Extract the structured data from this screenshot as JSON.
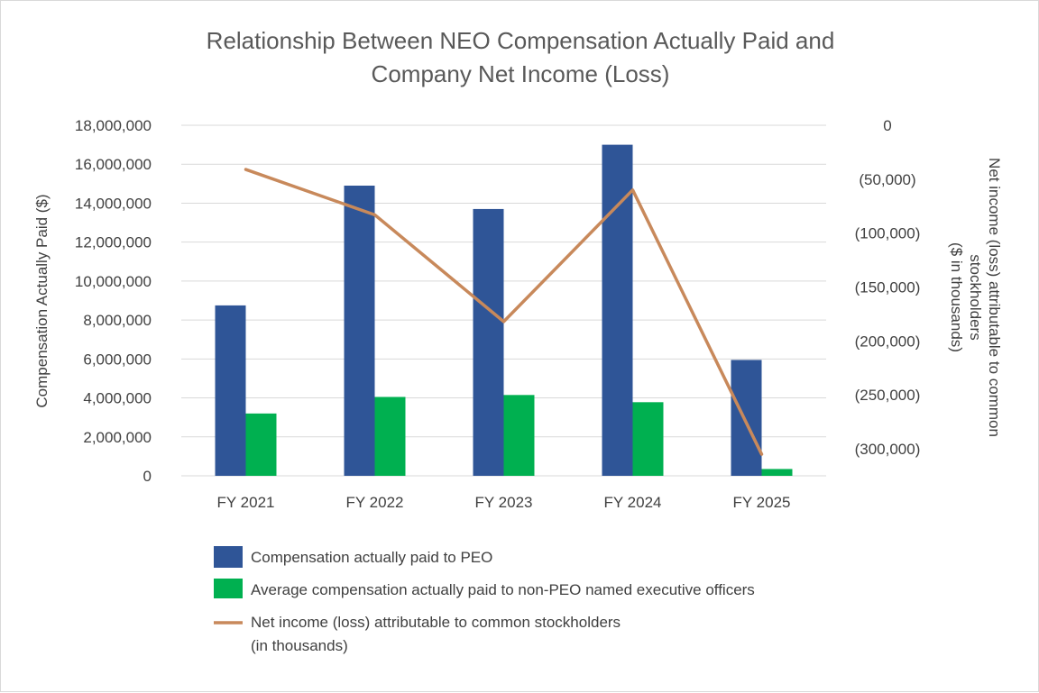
{
  "chart_data": {
    "type": "bar",
    "title": {
      "line1": "Relationship Between NEO Compensation Actually Paid and",
      "line2": "Company Net Income (Loss)"
    },
    "categories": [
      "FY 2021",
      "FY 2022",
      "FY 2023",
      "FY 2024",
      "FY 2025"
    ],
    "series": [
      {
        "name": "Compensation actually paid to PEO",
        "kind": "bar",
        "axis": "left",
        "color": "#2f5597",
        "values": [
          8750000,
          14900000,
          13700000,
          17000000,
          5950000
        ]
      },
      {
        "name": "Average compensation actually paid to non-PEO named executive officers",
        "kind": "bar",
        "axis": "left",
        "color": "#00b050",
        "values": [
          3200000,
          4050000,
          4150000,
          3780000,
          350000
        ]
      },
      {
        "name": "Net income (loss) attributable to common stockholders (in thousands)",
        "legend_lines": [
          "Net income (loss) attributable to common stockholders",
          "(in thousands)"
        ],
        "kind": "line",
        "axis": "right",
        "color": "#c8895b",
        "values": [
          -41000,
          -83000,
          -182000,
          -60000,
          -305000
        ]
      }
    ],
    "left_axis": {
      "label": "Compensation Actually Paid ($)",
      "ylim": [
        0,
        18000000
      ],
      "ticks": [
        "0",
        "2,000,000",
        "4,000,000",
        "6,000,000",
        "8,000,000",
        "10,000,000",
        "12,000,000",
        "14,000,000",
        "16,000,000",
        "18,000,000"
      ],
      "tick_values": [
        0,
        2000000,
        4000000,
        6000000,
        8000000,
        10000000,
        12000000,
        14000000,
        16000000,
        18000000
      ]
    },
    "right_axis": {
      "label_lines": [
        "Net income (loss) attributable to common",
        "stockholders",
        "($ in thousands)"
      ],
      "ylim": [
        -325000,
        0
      ],
      "ticks": [
        "0",
        "(50,000)",
        "(100,000)",
        "(150,000)",
        "(200,000)",
        "(250,000)",
        "(300,000)"
      ],
      "tick_values": [
        0,
        -50000,
        -100000,
        -150000,
        -200000,
        -250000,
        -300000
      ]
    },
    "grid": true,
    "legend_position": "bottom"
  }
}
